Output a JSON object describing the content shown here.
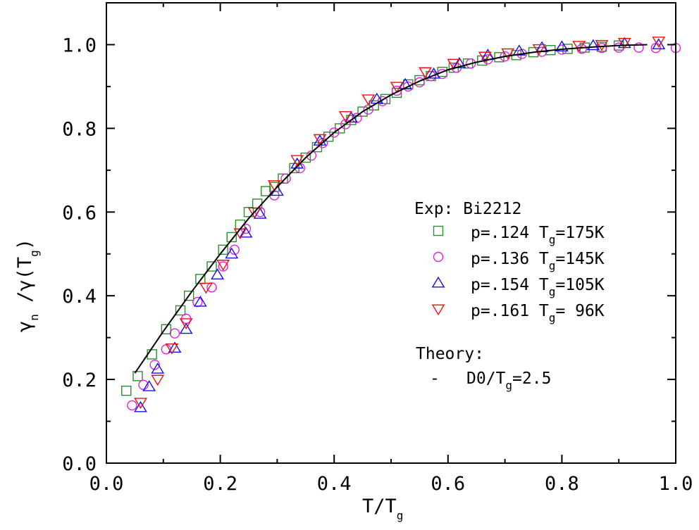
{
  "chart_data": {
    "type": "scatter",
    "xlim": [
      0.0,
      1.0
    ],
    "ylim": [
      0.0,
      1.1
    ],
    "x_ticks": [
      "0.0",
      "0.2",
      "0.4",
      "0.6",
      "0.8",
      "1.0"
    ],
    "y_ticks": [
      "0.0",
      "0.2",
      "0.4",
      "0.6",
      "0.8",
      "1.0"
    ],
    "xlabel": {
      "main": "T/T",
      "sub": "g"
    },
    "ylabel": {
      "main": "γ",
      "sub1": "n",
      "mid": " /γ(T",
      "sub2": "g",
      "end": ")"
    },
    "legend": {
      "placement": "right",
      "exp_title": "Exp: Bi2212",
      "theory_title": "Theory:",
      "theory_entry": {
        "marker": "-",
        "pre": "D0/T",
        "sub": "g",
        "post": "=2.5"
      }
    },
    "series": [
      {
        "name_pre": "p=.124 T",
        "name_sub": "g",
        "name_post": "=175K",
        "marker": "square",
        "color": "#2e8b2e",
        "points": [
          [
            0.035,
            0.173
          ],
          [
            0.055,
            0.208
          ],
          [
            0.08,
            0.26
          ],
          [
            0.105,
            0.32
          ],
          [
            0.13,
            0.365
          ],
          [
            0.145,
            0.4
          ],
          [
            0.165,
            0.44
          ],
          [
            0.185,
            0.47
          ],
          [
            0.205,
            0.51
          ],
          [
            0.22,
            0.54
          ],
          [
            0.235,
            0.57
          ],
          [
            0.25,
            0.6
          ],
          [
            0.265,
            0.62
          ],
          [
            0.28,
            0.65
          ],
          [
            0.295,
            0.66
          ],
          [
            0.31,
            0.68
          ],
          [
            0.33,
            0.705
          ],
          [
            0.35,
            0.73
          ],
          [
            0.37,
            0.755
          ],
          [
            0.39,
            0.78
          ],
          [
            0.41,
            0.8
          ],
          [
            0.43,
            0.82
          ],
          [
            0.45,
            0.84
          ],
          [
            0.47,
            0.855
          ],
          [
            0.49,
            0.87
          ],
          [
            0.51,
            0.885
          ],
          [
            0.53,
            0.905
          ],
          [
            0.55,
            0.915
          ],
          [
            0.57,
            0.925
          ],
          [
            0.59,
            0.935
          ],
          [
            0.61,
            0.945
          ],
          [
            0.635,
            0.955
          ],
          [
            0.66,
            0.962
          ],
          [
            0.69,
            0.97
          ],
          [
            0.72,
            0.975
          ],
          [
            0.75,
            0.982
          ],
          [
            0.78,
            0.987
          ],
          [
            0.81,
            0.99
          ],
          [
            0.84,
            0.993
          ],
          [
            0.87,
            0.995
          ],
          [
            0.9,
            0.998
          ]
        ]
      },
      {
        "name_pre": "p=.136 T",
        "name_sub": "g",
        "name_post": "=145K",
        "marker": "circle",
        "color": "#e020e0",
        "points": [
          [
            0.045,
            0.138
          ],
          [
            0.065,
            0.187
          ],
          [
            0.085,
            0.235
          ],
          [
            0.105,
            0.272
          ],
          [
            0.12,
            0.31
          ],
          [
            0.14,
            0.345
          ],
          [
            0.16,
            0.385
          ],
          [
            0.185,
            0.42
          ],
          [
            0.205,
            0.47
          ],
          [
            0.225,
            0.51
          ],
          [
            0.245,
            0.56
          ],
          [
            0.27,
            0.6
          ],
          [
            0.295,
            0.64
          ],
          [
            0.315,
            0.68
          ],
          [
            0.34,
            0.705
          ],
          [
            0.36,
            0.735
          ],
          [
            0.38,
            0.765
          ],
          [
            0.4,
            0.79
          ],
          [
            0.42,
            0.81
          ],
          [
            0.44,
            0.825
          ],
          [
            0.46,
            0.845
          ],
          [
            0.485,
            0.865
          ],
          [
            0.51,
            0.89
          ],
          [
            0.53,
            0.9
          ],
          [
            0.55,
            0.91
          ],
          [
            0.57,
            0.925
          ],
          [
            0.59,
            0.93
          ],
          [
            0.615,
            0.945
          ],
          [
            0.64,
            0.955
          ],
          [
            0.67,
            0.965
          ],
          [
            0.7,
            0.972
          ],
          [
            0.73,
            0.978
          ],
          [
            0.765,
            0.983
          ],
          [
            0.8,
            0.988
          ],
          [
            0.835,
            0.99
          ],
          [
            0.87,
            0.992
          ],
          [
            0.9,
            0.993
          ],
          [
            0.935,
            0.993
          ],
          [
            0.965,
            0.992
          ],
          [
            1.0,
            0.992
          ]
        ]
      },
      {
        "name_pre": "p=.154 T",
        "name_sub": "g",
        "name_post": "=105K",
        "marker": "triangle-up",
        "color": "#1010ee",
        "points": [
          [
            0.06,
            0.133
          ],
          [
            0.075,
            0.183
          ],
          [
            0.09,
            0.225
          ],
          [
            0.12,
            0.275
          ],
          [
            0.14,
            0.32
          ],
          [
            0.165,
            0.385
          ],
          [
            0.195,
            0.45
          ],
          [
            0.22,
            0.5
          ],
          [
            0.245,
            0.55
          ],
          [
            0.27,
            0.595
          ],
          [
            0.3,
            0.65
          ],
          [
            0.335,
            0.715
          ],
          [
            0.375,
            0.77
          ],
          [
            0.43,
            0.825
          ],
          [
            0.475,
            0.87
          ],
          [
            0.525,
            0.905
          ],
          [
            0.575,
            0.93
          ],
          [
            0.62,
            0.955
          ],
          [
            0.67,
            0.975
          ],
          [
            0.725,
            0.985
          ],
          [
            0.765,
            0.993
          ],
          [
            0.8,
            0.995
          ],
          [
            0.855,
            0.998
          ],
          [
            0.91,
            1.003
          ],
          [
            0.97,
            1.0
          ]
        ]
      },
      {
        "name_pre": "p=.161 T",
        "name_sub": "g",
        "name_post": "= 96K",
        "marker": "triangle-down",
        "color": "#ee1010",
        "points": [
          [
            0.06,
            0.145
          ],
          [
            0.09,
            0.2
          ],
          [
            0.115,
            0.275
          ],
          [
            0.14,
            0.335
          ],
          [
            0.175,
            0.42
          ],
          [
            0.205,
            0.475
          ],
          [
            0.235,
            0.55
          ],
          [
            0.26,
            0.6
          ],
          [
            0.295,
            0.665
          ],
          [
            0.335,
            0.725
          ],
          [
            0.375,
            0.775
          ],
          [
            0.42,
            0.83
          ],
          [
            0.46,
            0.87
          ],
          [
            0.51,
            0.9
          ],
          [
            0.56,
            0.935
          ],
          [
            0.61,
            0.955
          ],
          [
            0.665,
            0.972
          ],
          [
            0.705,
            0.98
          ],
          [
            0.76,
            0.99
          ],
          [
            0.83,
            0.998
          ],
          [
            0.87,
            1.0
          ],
          [
            0.91,
            1.005
          ],
          [
            0.97,
            1.008
          ]
        ]
      }
    ],
    "theory_curve": {
      "points": [
        [
          0.05,
          0.215
        ],
        [
          0.1,
          0.315
        ],
        [
          0.15,
          0.41
        ],
        [
          0.2,
          0.5
        ],
        [
          0.25,
          0.585
        ],
        [
          0.3,
          0.66
        ],
        [
          0.35,
          0.73
        ],
        [
          0.4,
          0.79
        ],
        [
          0.45,
          0.84
        ],
        [
          0.5,
          0.88
        ],
        [
          0.55,
          0.913
        ],
        [
          0.6,
          0.94
        ],
        [
          0.65,
          0.958
        ],
        [
          0.7,
          0.972
        ],
        [
          0.75,
          0.982
        ],
        [
          0.8,
          0.989
        ],
        [
          0.85,
          0.994
        ],
        [
          0.9,
          0.998
        ],
        [
          0.95,
          1.0
        ]
      ]
    }
  }
}
